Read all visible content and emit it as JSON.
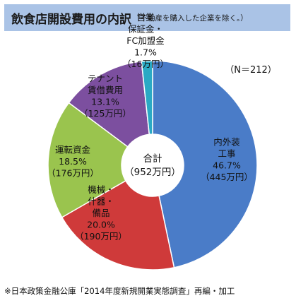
{
  "title": "飲食店開設費用の内訳",
  "subtitle": "（不動産を購入した企業を除く。）",
  "sample_size": "（N＝212）",
  "center_label": [
    "合計",
    "（952万円）"
  ],
  "source": "※日本政策金融公庫「2014年度新規開業実態調査」再編・加工",
  "colors": {
    "title_bg": "#aac3e6",
    "interior": "#4a7cc8",
    "equipment": "#cf3a3a",
    "working_capital": "#9ac44e",
    "tenant_deposit": "#7c4f9f",
    "business_deposit": "#2aa9c4"
  },
  "chart_data": {
    "type": "pie",
    "variant": "donut",
    "unit": "万円",
    "total": 952,
    "slices": [
      {
        "key": "interior",
        "label_lines": [
          "内外装",
          "工事",
          "46.7%",
          "（445万円）"
        ],
        "percent": 46.7,
        "amount": 445
      },
      {
        "key": "equipment",
        "label_lines": [
          "機械・",
          "什器・",
          "備品",
          "20.0%",
          "（190万円）"
        ],
        "percent": 20.0,
        "amount": 190
      },
      {
        "key": "working_capital",
        "label_lines": [
          "運転資金",
          "18.5%",
          "（176万円）"
        ],
        "percent": 18.5,
        "amount": 176
      },
      {
        "key": "tenant_deposit",
        "label_lines": [
          "テナント",
          "賃借費用",
          "13.1%",
          "（125万円）"
        ],
        "percent": 13.1,
        "amount": 125
      },
      {
        "key": "business_deposit",
        "label_lines": [
          "営業",
          "保証金・",
          "FC加盟金",
          "1.7%",
          "（16万円）"
        ],
        "percent": 1.7,
        "amount": 16
      }
    ]
  }
}
